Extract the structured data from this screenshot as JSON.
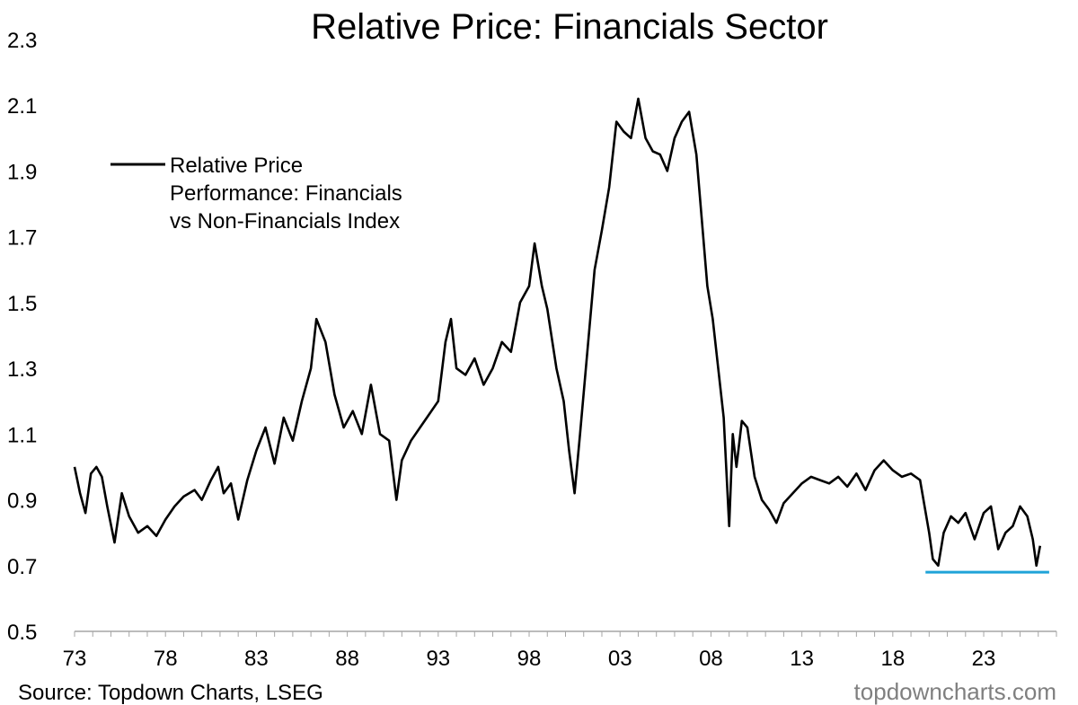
{
  "chart_data": {
    "type": "line",
    "title": "Relative Price: Financials Sector",
    "xlabel": "",
    "ylabel": "",
    "ylim": [
      0.5,
      2.3
    ],
    "xlim": [
      1973,
      2027
    ],
    "y_ticks": [
      "0.5",
      "0.7",
      "0.9",
      "1.1",
      "1.3",
      "1.5",
      "1.7",
      "1.9",
      "2.1",
      "2.3"
    ],
    "x_ticks": [
      "73",
      "78",
      "83",
      "88",
      "93",
      "98",
      "03",
      "08",
      "13",
      "18",
      "23"
    ],
    "grid": false,
    "legend_position": "top-left",
    "colors": {
      "series": "#000000",
      "support_line": "#1fa3d8",
      "watermark": "#7f7f7f"
    },
    "series": [
      {
        "name": "Relative Price Performance:  Financials vs Non-Financials Index",
        "legend_lines": [
          "Relative Price",
          "Performance:  Financials",
          "vs Non-Financials Index"
        ],
        "x": [
          1973.0,
          1973.3,
          1973.6,
          1973.9,
          1974.2,
          1974.5,
          1974.8,
          1975.2,
          1975.6,
          1976.0,
          1976.5,
          1977.0,
          1977.5,
          1978.0,
          1978.5,
          1979.0,
          1979.6,
          1980.0,
          1980.5,
          1980.9,
          1981.2,
          1981.6,
          1982.0,
          1982.5,
          1983.0,
          1983.5,
          1984.0,
          1984.5,
          1985.0,
          1985.5,
          1986.0,
          1986.3,
          1986.8,
          1987.3,
          1987.8,
          1988.3,
          1988.8,
          1989.3,
          1989.8,
          1990.3,
          1990.7,
          1991.0,
          1991.5,
          1992.0,
          1992.5,
          1993.0,
          1993.4,
          1993.7,
          1994.0,
          1994.5,
          1995.0,
          1995.5,
          1996.0,
          1996.5,
          1997.0,
          1997.5,
          1998.0,
          1998.3,
          1998.7,
          1999.0,
          1999.5,
          1999.9,
          2000.2,
          2000.5,
          2000.8,
          2001.2,
          2001.6,
          2002.0,
          2002.4,
          2002.8,
          2003.2,
          2003.6,
          2004.0,
          2004.4,
          2004.8,
          2005.2,
          2005.6,
          2006.0,
          2006.4,
          2006.8,
          2007.2,
          2007.5,
          2007.8,
          2008.1,
          2008.4,
          2008.7,
          2009.0,
          2009.2,
          2009.4,
          2009.7,
          2010.0,
          2010.4,
          2010.8,
          2011.2,
          2011.6,
          2012.0,
          2012.5,
          2013.0,
          2013.5,
          2014.0,
          2014.5,
          2015.0,
          2015.5,
          2016.0,
          2016.5,
          2017.0,
          2017.5,
          2018.0,
          2018.5,
          2019.0,
          2019.5,
          2020.0,
          2020.2,
          2020.5,
          2020.8,
          2021.2,
          2021.6,
          2022.0,
          2022.5,
          2023.0,
          2023.4,
          2023.8,
          2024.2,
          2024.6,
          2025.0,
          2025.4,
          2025.7,
          2025.9,
          2026.1
        ],
        "values": [
          1.0,
          0.92,
          0.86,
          0.98,
          1.0,
          0.97,
          0.88,
          0.77,
          0.92,
          0.85,
          0.8,
          0.82,
          0.79,
          0.84,
          0.88,
          0.91,
          0.93,
          0.9,
          0.96,
          1.0,
          0.92,
          0.95,
          0.84,
          0.96,
          1.05,
          1.12,
          1.01,
          1.15,
          1.08,
          1.2,
          1.3,
          1.45,
          1.38,
          1.22,
          1.12,
          1.17,
          1.1,
          1.25,
          1.1,
          1.08,
          0.9,
          1.02,
          1.08,
          1.12,
          1.16,
          1.2,
          1.38,
          1.45,
          1.3,
          1.28,
          1.33,
          1.25,
          1.3,
          1.38,
          1.35,
          1.5,
          1.55,
          1.68,
          1.55,
          1.48,
          1.3,
          1.2,
          1.05,
          0.92,
          1.1,
          1.35,
          1.6,
          1.72,
          1.85,
          2.05,
          2.02,
          2.0,
          2.12,
          2.0,
          1.96,
          1.95,
          1.9,
          2.0,
          2.05,
          2.08,
          1.95,
          1.75,
          1.55,
          1.45,
          1.3,
          1.15,
          0.82,
          1.1,
          1.0,
          1.14,
          1.12,
          0.97,
          0.9,
          0.87,
          0.83,
          0.89,
          0.92,
          0.95,
          0.97,
          0.96,
          0.95,
          0.97,
          0.94,
          0.98,
          0.93,
          0.99,
          1.02,
          0.99,
          0.97,
          0.98,
          0.96,
          0.8,
          0.72,
          0.7,
          0.8,
          0.85,
          0.83,
          0.86,
          0.78,
          0.86,
          0.88,
          0.75,
          0.8,
          0.82,
          0.88,
          0.85,
          0.78,
          0.7,
          0.76
        ]
      }
    ],
    "annotations": [
      {
        "type": "horizontal_line",
        "y": 0.68,
        "x_start": 2019.8,
        "x_end": 2026.6,
        "color": "#1fa3d8"
      }
    ],
    "source": "Source: Topdown Charts, LSEG",
    "watermark": "topdowncharts.com"
  }
}
